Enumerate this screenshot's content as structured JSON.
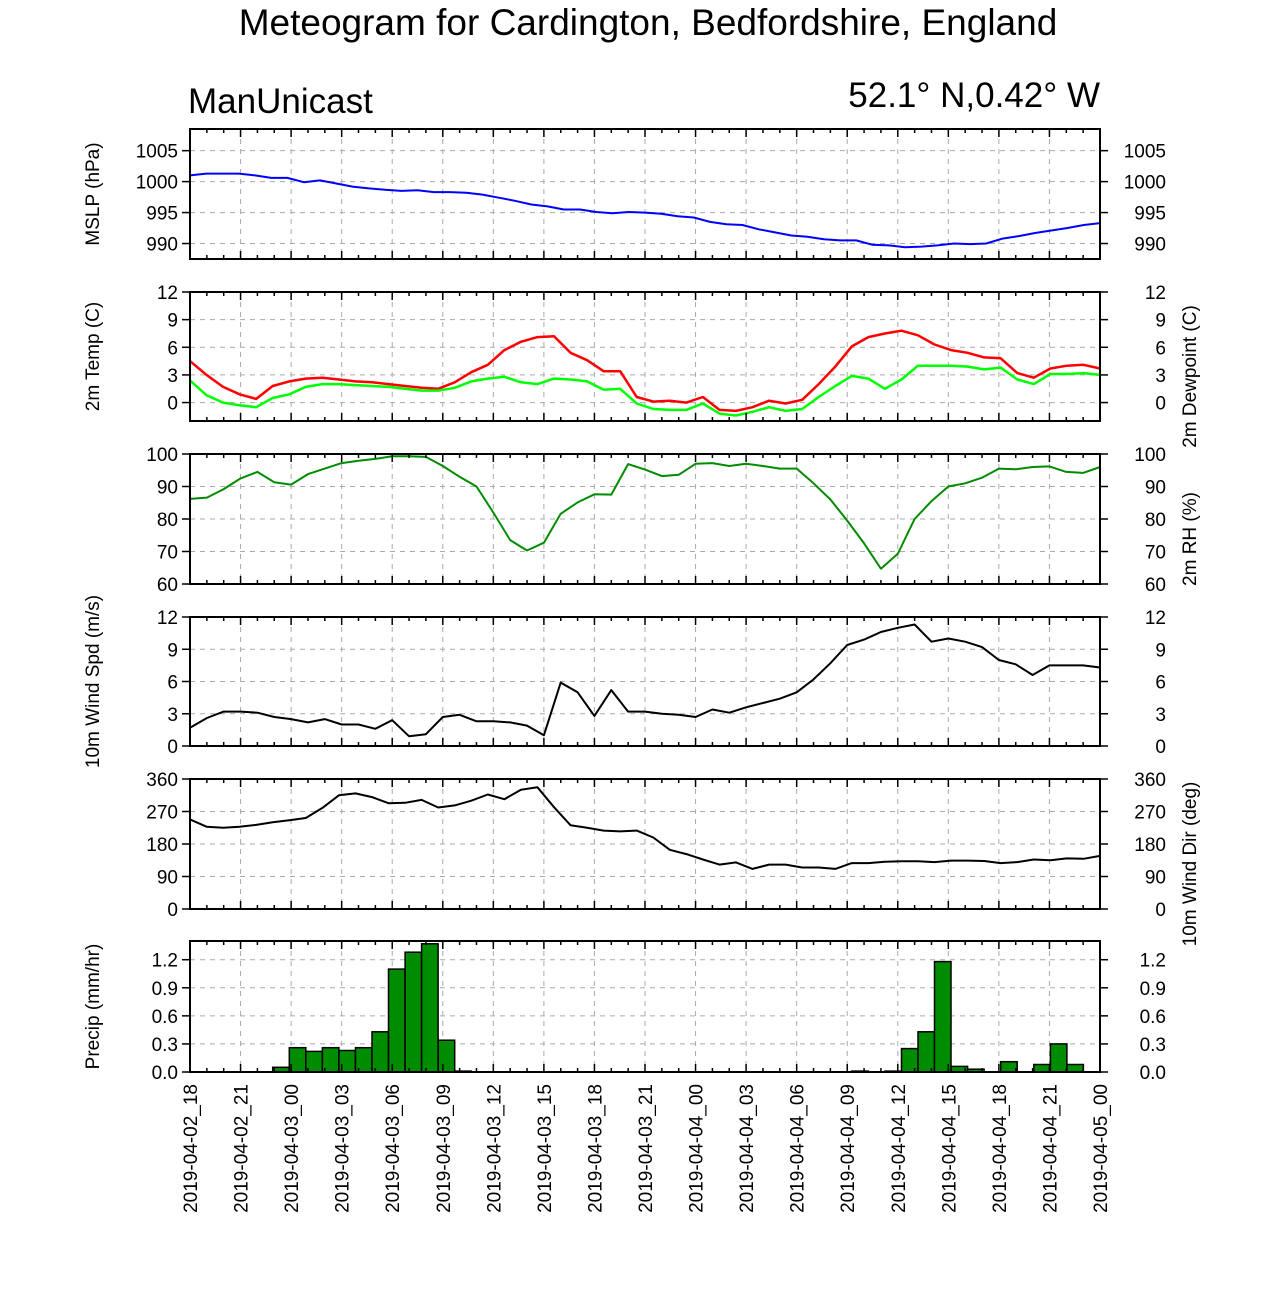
{
  "title": "Meteogram for Cardington, Bedfordshire, England",
  "model": "ManUnicast",
  "location": "52.1° N,0.42° W",
  "colors": {
    "mslp": "#0000ff",
    "temp": "#ff0000",
    "dewpoint": "#00ff00",
    "rh": "#008c00",
    "wind": "#000000",
    "precip_fill": "#008c00",
    "grid": "#aaaaaa"
  },
  "chart_data": [
    {
      "type": "line",
      "ylabel_left": "MSLP (hPa)",
      "ylabel_right": "",
      "ylim": [
        987.5,
        1008.5
      ],
      "yticks": [
        "990",
        "995",
        "1000",
        "1005"
      ],
      "series": [
        {
          "values": [
            1001.0,
            1001.3,
            1001.3,
            1001.3,
            1001.0,
            1000.6,
            1000.6,
            999.9,
            1000.2,
            999.7,
            999.2,
            998.9,
            998.7,
            998.5,
            998.6,
            998.3,
            998.3,
            998.2,
            997.9,
            997.4,
            996.9,
            996.3,
            996.0,
            995.5,
            995.5,
            995.1,
            994.9,
            995.1,
            995.0,
            994.8,
            994.4,
            994.2,
            993.5,
            993.1,
            993.0,
            992.3,
            991.8,
            991.3,
            991.1,
            990.7,
            990.5,
            990.5,
            989.8,
            989.7,
            989.4,
            989.5,
            989.7,
            990.0,
            989.9,
            990.0,
            990.8,
            991.2,
            991.7,
            992.1,
            992.5,
            993.0,
            993.3
          ]
        }
      ]
    },
    {
      "type": "line",
      "ylabel_left": "2m Temp (C)",
      "ylabel_right": "2m Dewpoint (C)",
      "ylim": [
        -2,
        12
      ],
      "yticks": [
        "0",
        "3",
        "6",
        "9",
        "12"
      ],
      "series": [
        {
          "values": [
            4.5,
            3.0,
            1.7,
            0.9,
            0.4,
            1.8,
            2.3,
            2.6,
            2.7,
            2.5,
            2.3,
            2.2,
            2.0,
            1.8,
            1.6,
            1.5,
            2.2,
            3.3,
            4.1,
            5.7,
            6.6,
            7.1,
            7.2,
            5.4,
            4.6,
            3.4,
            3.4,
            0.6,
            0.1,
            0.2,
            0.0,
            0.6,
            -0.8,
            -0.9,
            -0.5,
            0.2,
            -0.1,
            0.3,
            2.0,
            3.9,
            6.1,
            7.1,
            7.5,
            7.8,
            7.3,
            6.3,
            5.7,
            5.4,
            4.9,
            4.8,
            3.2,
            2.7,
            3.7,
            4.0,
            4.1,
            3.7
          ]
        },
        {
          "values": [
            2.4,
            0.8,
            0.0,
            -0.3,
            -0.5,
            0.5,
            0.9,
            1.7,
            2.0,
            2.0,
            1.9,
            1.8,
            1.7,
            1.5,
            1.3,
            1.3,
            1.6,
            2.3,
            2.6,
            2.8,
            2.2,
            2.0,
            2.6,
            2.5,
            2.3,
            1.4,
            1.5,
            -0.1,
            -0.7,
            -0.8,
            -0.8,
            -0.1,
            -1.2,
            -1.4,
            -1.0,
            -0.5,
            -0.9,
            -0.7,
            0.6,
            1.8,
            2.9,
            2.6,
            1.5,
            2.5,
            4.0,
            4.0,
            4.0,
            3.9,
            3.6,
            3.8,
            2.5,
            2.0,
            3.1,
            3.1,
            3.2,
            3.0
          ]
        }
      ]
    },
    {
      "type": "line",
      "ylabel_left": "",
      "ylabel_right": "2m RH (%)",
      "ylim": [
        60,
        100
      ],
      "yticks": [
        "60",
        "70",
        "80",
        "90",
        "100"
      ],
      "series": [
        {
          "values": [
            86.2,
            86.6,
            89.2,
            92.5,
            94.5,
            91.3,
            90.6,
            93.8,
            95.5,
            97.2,
            97.9,
            98.5,
            99.3,
            99.3,
            99.1,
            96.3,
            93.0,
            90.0,
            82.0,
            73.5,
            70.3,
            72.7,
            81.6,
            85.1,
            87.6,
            87.5,
            96.9,
            95.2,
            93.2,
            93.6,
            97.0,
            97.2,
            96.3,
            97.0,
            96.3,
            95.5,
            95.5,
            91.0,
            86.0,
            79.5,
            72.5,
            64.7,
            69.3,
            80.0,
            85.5,
            90.0,
            91.0,
            92.7,
            95.5,
            95.3,
            96.0,
            96.2,
            94.5,
            94.2,
            96.0
          ]
        }
      ]
    },
    {
      "type": "line",
      "ylabel_left": "10m Wind Spd (m/s)",
      "ylabel_right": "",
      "ylim": [
        0,
        12
      ],
      "yticks": [
        "0",
        "3",
        "6",
        "9",
        "12"
      ],
      "series": [
        {
          "values": [
            1.7,
            2.6,
            3.2,
            3.2,
            3.1,
            2.7,
            2.5,
            2.2,
            2.5,
            2.0,
            2.0,
            1.6,
            2.4,
            0.9,
            1.1,
            2.7,
            2.9,
            2.3,
            2.3,
            2.2,
            1.9,
            1.0,
            5.9,
            5.0,
            2.8,
            5.2,
            3.2,
            3.2,
            3.0,
            2.9,
            2.7,
            3.4,
            3.1,
            3.6,
            4.0,
            4.4,
            5.0,
            6.2,
            7.7,
            9.4,
            9.9,
            10.6,
            11.0,
            11.3,
            9.7,
            10.0,
            9.7,
            9.2,
            8.0,
            7.6,
            6.6,
            7.5,
            7.5,
            7.5,
            7.3
          ]
        }
      ]
    },
    {
      "type": "line",
      "ylabel_left": "",
      "ylabel_right": "10m Wind Dir (deg)",
      "ylim": [
        0,
        360
      ],
      "yticks": [
        "0",
        "90",
        "180",
        "270",
        "360"
      ],
      "series": [
        {
          "values": [
            248,
            228,
            225,
            228,
            233,
            240,
            246,
            252,
            280,
            315,
            320,
            310,
            293,
            294,
            302,
            281,
            287,
            300,
            317,
            304,
            330,
            337,
            282,
            232,
            225,
            217,
            215,
            217,
            198,
            164,
            152,
            137,
            123,
            129,
            111,
            123,
            123,
            115,
            115,
            111,
            127,
            127,
            131,
            132,
            132,
            130,
            134,
            134,
            133,
            127,
            130,
            137,
            135,
            140,
            139,
            147
          ]
        }
      ]
    },
    {
      "type": "bar",
      "ylabel_left": "Precip (mm/hr)",
      "ylabel_right": "",
      "ylim": [
        0,
        1.4
      ],
      "yticks": [
        "0.0",
        "0.3",
        "0.6",
        "0.9",
        "1.2"
      ],
      "series": [
        {
          "values": [
            0,
            0,
            0,
            0,
            0,
            0.05,
            0.26,
            0.22,
            0.26,
            0.23,
            0.26,
            0.43,
            1.1,
            1.28,
            1.37,
            0.34,
            0.01,
            0,
            0,
            0,
            0,
            0,
            0,
            0,
            0,
            0,
            0,
            0,
            0,
            0,
            0,
            0,
            0,
            0,
            0,
            0,
            0,
            0,
            0,
            0,
            0.01,
            0,
            0.01,
            0.25,
            0.43,
            1.18,
            0.06,
            0.03,
            0,
            0.11,
            0,
            0.08,
            0.3,
            0.08,
            0
          ]
        }
      ]
    }
  ],
  "x_ticks": [
    "2019-04-02_18",
    "2019-04-02_21",
    "2019-04-03_00",
    "2019-04-03_03",
    "2019-04-03_06",
    "2019-04-03_09",
    "2019-04-03_12",
    "2019-04-03_15",
    "2019-04-03_18",
    "2019-04-03_21",
    "2019-04-04_00",
    "2019-04-04_03",
    "2019-04-04_06",
    "2019-04-04_09",
    "2019-04-04_12",
    "2019-04-04_15",
    "2019-04-04_18",
    "2019-04-04_21",
    "2019-04-05_00"
  ]
}
